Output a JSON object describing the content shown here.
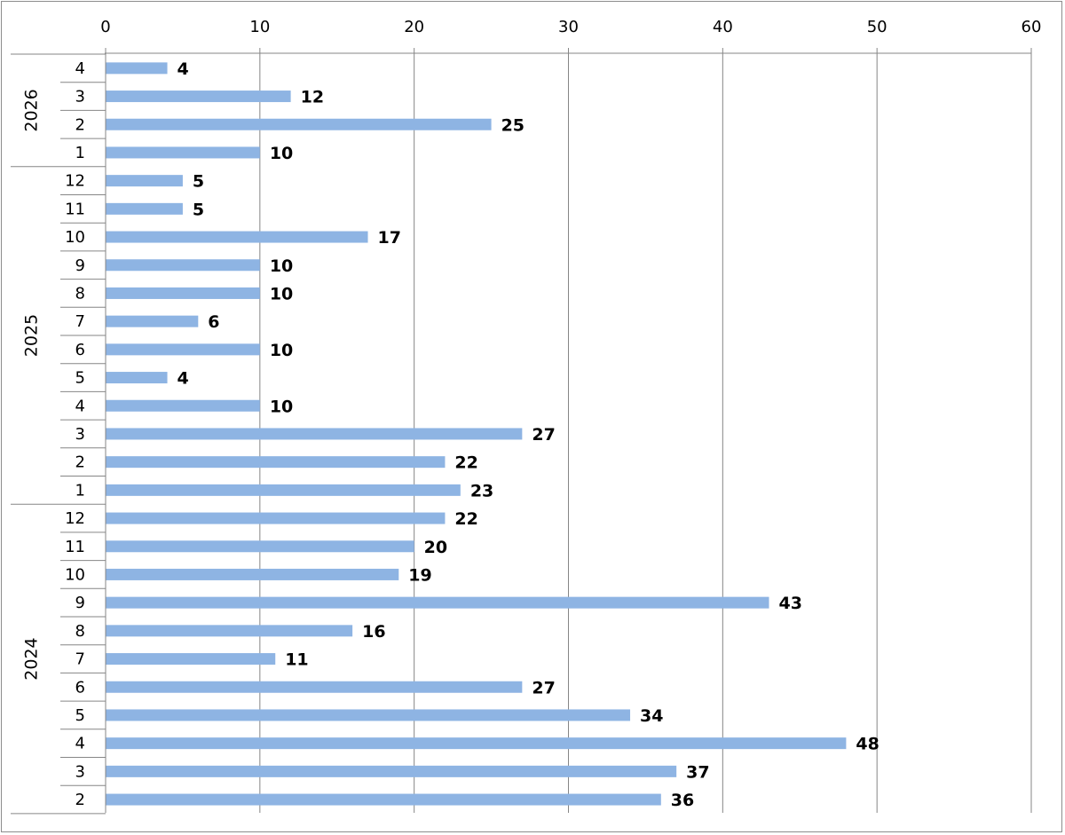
{
  "chart_data": {
    "type": "bar",
    "orientation": "horizontal",
    "title": "",
    "xlabel": "",
    "ylabel": "",
    "xlim": [
      0,
      60
    ],
    "x_ticks": [
      0,
      10,
      20,
      30,
      40,
      50,
      60
    ],
    "grid": "vertical",
    "data_labels": true,
    "bar_color": "#8eb4e3",
    "grid_color": "#868686",
    "groups": [
      {
        "year": "2026",
        "months": [
          "4",
          "3",
          "2",
          "1"
        ],
        "values": [
          4,
          12,
          25,
          10
        ]
      },
      {
        "year": "2025",
        "months": [
          "12",
          "11",
          "10",
          "9",
          "8",
          "7",
          "6",
          "5",
          "4",
          "3",
          "2",
          "1"
        ],
        "values": [
          5,
          5,
          17,
          10,
          10,
          6,
          10,
          4,
          10,
          27,
          22,
          23
        ]
      },
      {
        "year": "2024",
        "months": [
          "12",
          "11",
          "10",
          "9",
          "8",
          "7",
          "6",
          "5",
          "4",
          "3",
          "2"
        ],
        "values": [
          22,
          20,
          19,
          43,
          16,
          11,
          27,
          34,
          48,
          37,
          36
        ]
      }
    ]
  }
}
